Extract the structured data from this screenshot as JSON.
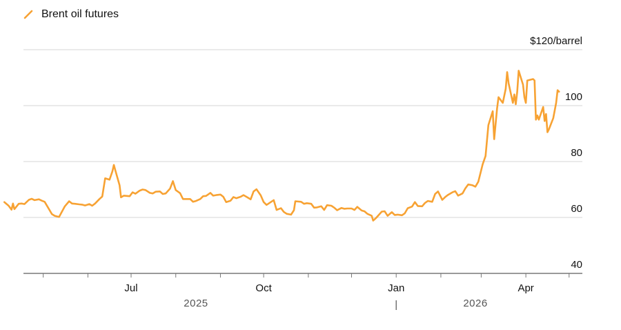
{
  "legend": {
    "label": "Brent oil futures",
    "color": "#f7a233"
  },
  "chart_data": {
    "type": "line",
    "title": "",
    "xlabel": "",
    "ylabel": "",
    "y_top_label": "$120/barrel",
    "ylim": [
      40,
      120
    ],
    "y_ticks": [
      {
        "value": 40,
        "label": "40"
      },
      {
        "value": 60,
        "label": "60"
      },
      {
        "value": 80,
        "label": "80"
      },
      {
        "value": 100,
        "label": "100"
      }
    ],
    "xlim": [
      "2025-04-01",
      "2026-05-15"
    ],
    "month_ticks": [
      "2025-05-01",
      "2025-06-01",
      "2025-07-01",
      "2025-08-01",
      "2025-09-01",
      "2025-10-01",
      "2025-11-01",
      "2025-12-01",
      "2026-01-01",
      "2026-02-01",
      "2026-03-01",
      "2026-04-01",
      "2026-05-01"
    ],
    "x_labels": [
      {
        "date": "2025-07-01",
        "label": "Jul"
      },
      {
        "date": "2025-10-01",
        "label": "Oct"
      },
      {
        "date": "2026-01-01",
        "label": "Jan"
      },
      {
        "date": "2026-04-01",
        "label": "Apr"
      }
    ],
    "year_labels": [
      {
        "date": "2025-08-15",
        "label": "2025"
      },
      {
        "date": "2026-02-25",
        "label": "2026"
      }
    ],
    "year_divider": "|",
    "grid": true,
    "series": [
      {
        "name": "Brent oil futures",
        "color": "#f7a233",
        "points": [
          [
            "2025-04-04",
            65.5
          ],
          [
            "2025-04-07",
            64.2
          ],
          [
            "2025-04-09",
            62.8
          ],
          [
            "2025-04-10",
            65.0
          ],
          [
            "2025-04-11",
            63.0
          ],
          [
            "2025-04-14",
            64.9
          ],
          [
            "2025-04-16",
            65.0
          ],
          [
            "2025-04-18",
            64.8
          ],
          [
            "2025-04-21",
            66.3
          ],
          [
            "2025-04-23",
            66.7
          ],
          [
            "2025-04-25",
            66.2
          ],
          [
            "2025-04-28",
            66.5
          ],
          [
            "2025-04-30",
            66.0
          ],
          [
            "2025-05-02",
            65.6
          ],
          [
            "2025-05-05",
            63.0
          ],
          [
            "2025-05-07",
            61.2
          ],
          [
            "2025-05-09",
            60.6
          ],
          [
            "2025-05-12",
            60.2
          ],
          [
            "2025-05-14",
            62.1
          ],
          [
            "2025-05-16",
            64.0
          ],
          [
            "2025-05-19",
            65.8
          ],
          [
            "2025-05-21",
            65.0
          ],
          [
            "2025-05-23",
            64.9
          ],
          [
            "2025-05-26",
            64.7
          ],
          [
            "2025-05-28",
            64.6
          ],
          [
            "2025-05-30",
            64.3
          ],
          [
            "2025-06-02",
            64.8
          ],
          [
            "2025-06-04",
            64.2
          ],
          [
            "2025-06-06",
            65.0
          ],
          [
            "2025-06-09",
            66.6
          ],
          [
            "2025-06-11",
            67.5
          ],
          [
            "2025-06-13",
            74.0
          ],
          [
            "2025-06-16",
            73.5
          ],
          [
            "2025-06-18",
            76.5
          ],
          [
            "2025-06-19",
            78.8
          ],
          [
            "2025-06-20",
            77.0
          ],
          [
            "2025-06-23",
            71.5
          ],
          [
            "2025-06-24",
            67.2
          ],
          [
            "2025-06-26",
            67.8
          ],
          [
            "2025-06-30",
            67.6
          ],
          [
            "2025-07-02",
            69.0
          ],
          [
            "2025-07-04",
            68.5
          ],
          [
            "2025-07-07",
            69.6
          ],
          [
            "2025-07-09",
            70.0
          ],
          [
            "2025-07-11",
            69.8
          ],
          [
            "2025-07-14",
            68.8
          ],
          [
            "2025-07-16",
            68.6
          ],
          [
            "2025-07-18",
            69.2
          ],
          [
            "2025-07-21",
            69.3
          ],
          [
            "2025-07-23",
            68.4
          ],
          [
            "2025-07-25",
            68.6
          ],
          [
            "2025-07-28",
            70.3
          ],
          [
            "2025-07-30",
            73.0
          ],
          [
            "2025-08-01",
            69.8
          ],
          [
            "2025-08-04",
            68.7
          ],
          [
            "2025-08-06",
            66.6
          ],
          [
            "2025-08-08",
            66.6
          ],
          [
            "2025-08-11",
            66.6
          ],
          [
            "2025-08-13",
            65.6
          ],
          [
            "2025-08-15",
            65.9
          ],
          [
            "2025-08-18",
            66.6
          ],
          [
            "2025-08-20",
            67.6
          ],
          [
            "2025-08-22",
            67.7
          ],
          [
            "2025-08-25",
            68.8
          ],
          [
            "2025-08-27",
            67.8
          ],
          [
            "2025-08-29",
            68.0
          ],
          [
            "2025-09-01",
            68.2
          ],
          [
            "2025-09-03",
            67.4
          ],
          [
            "2025-09-05",
            65.5
          ],
          [
            "2025-09-08",
            66.0
          ],
          [
            "2025-09-10",
            67.3
          ],
          [
            "2025-09-12",
            66.9
          ],
          [
            "2025-09-15",
            67.4
          ],
          [
            "2025-09-17",
            68.0
          ],
          [
            "2025-09-19",
            67.4
          ],
          [
            "2025-09-22",
            66.5
          ],
          [
            "2025-09-24",
            69.3
          ],
          [
            "2025-09-26",
            70.1
          ],
          [
            "2025-09-29",
            67.9
          ],
          [
            "2025-10-01",
            65.5
          ],
          [
            "2025-10-03",
            64.5
          ],
          [
            "2025-10-06",
            65.5
          ],
          [
            "2025-10-08",
            66.2
          ],
          [
            "2025-10-10",
            62.7
          ],
          [
            "2025-10-13",
            63.3
          ],
          [
            "2025-10-15",
            62.0
          ],
          [
            "2025-10-17",
            61.3
          ],
          [
            "2025-10-20",
            61.0
          ],
          [
            "2025-10-22",
            62.6
          ],
          [
            "2025-10-23",
            65.8
          ],
          [
            "2025-10-27",
            65.6
          ],
          [
            "2025-10-29",
            64.9
          ],
          [
            "2025-10-31",
            65.1
          ],
          [
            "2025-11-03",
            64.9
          ],
          [
            "2025-11-05",
            63.5
          ],
          [
            "2025-11-07",
            63.6
          ],
          [
            "2025-11-10",
            64.0
          ],
          [
            "2025-11-12",
            62.7
          ],
          [
            "2025-11-14",
            64.4
          ],
          [
            "2025-11-17",
            64.2
          ],
          [
            "2025-11-19",
            63.5
          ],
          [
            "2025-11-21",
            62.6
          ],
          [
            "2025-11-24",
            63.4
          ],
          [
            "2025-11-26",
            63.1
          ],
          [
            "2025-11-28",
            63.2
          ],
          [
            "2025-12-01",
            63.2
          ],
          [
            "2025-12-03",
            62.7
          ],
          [
            "2025-12-05",
            63.8
          ],
          [
            "2025-12-08",
            62.5
          ],
          [
            "2025-12-10",
            62.2
          ],
          [
            "2025-12-12",
            61.3
          ],
          [
            "2025-12-15",
            60.6
          ],
          [
            "2025-12-16",
            58.9
          ],
          [
            "2025-12-18",
            59.8
          ],
          [
            "2025-12-22",
            62.1
          ],
          [
            "2025-12-24",
            62.2
          ],
          [
            "2025-12-26",
            60.6
          ],
          [
            "2025-12-29",
            61.9
          ],
          [
            "2025-12-31",
            60.9
          ],
          [
            "2026-01-02",
            61.0
          ],
          [
            "2026-01-05",
            60.8
          ],
          [
            "2026-01-07",
            61.5
          ],
          [
            "2026-01-09",
            63.3
          ],
          [
            "2026-01-12",
            63.9
          ],
          [
            "2026-01-14",
            65.5
          ],
          [
            "2026-01-16",
            64.1
          ],
          [
            "2026-01-19",
            64.0
          ],
          [
            "2026-01-21",
            65.2
          ],
          [
            "2026-01-23",
            65.9
          ],
          [
            "2026-01-26",
            65.6
          ],
          [
            "2026-01-28",
            68.4
          ],
          [
            "2026-01-30",
            69.3
          ],
          [
            "2026-02-02",
            66.3
          ],
          [
            "2026-02-04",
            67.3
          ],
          [
            "2026-02-06",
            68.1
          ],
          [
            "2026-02-09",
            69.0
          ],
          [
            "2026-02-11",
            69.4
          ],
          [
            "2026-02-13",
            67.8
          ],
          [
            "2026-02-16",
            68.6
          ],
          [
            "2026-02-18",
            70.4
          ],
          [
            "2026-02-20",
            71.8
          ],
          [
            "2026-02-23",
            71.5
          ],
          [
            "2026-02-25",
            71.0
          ],
          [
            "2026-02-27",
            72.8
          ],
          [
            "2026-03-02",
            79.0
          ],
          [
            "2026-03-04",
            82.0
          ],
          [
            "2026-03-06",
            93.0
          ],
          [
            "2026-03-09",
            98.0
          ],
          [
            "2026-03-10",
            88.0
          ],
          [
            "2026-03-12",
            99.0
          ],
          [
            "2026-03-13",
            103.0
          ],
          [
            "2026-03-16",
            101.0
          ],
          [
            "2026-03-18",
            106.0
          ],
          [
            "2026-03-19",
            112.0
          ],
          [
            "2026-03-20",
            108.0
          ],
          [
            "2026-03-23",
            101.0
          ],
          [
            "2026-03-24",
            104.0
          ],
          [
            "2026-03-25",
            100.5
          ],
          [
            "2026-03-26",
            105.0
          ],
          [
            "2026-03-27",
            112.5
          ],
          [
            "2026-03-30",
            107.5
          ],
          [
            "2026-03-31",
            103.0
          ],
          [
            "2026-04-01",
            101.0
          ],
          [
            "2026-04-02",
            109.0
          ],
          [
            "2026-04-06",
            109.5
          ],
          [
            "2026-04-07",
            109.0
          ],
          [
            "2026-04-08",
            95.0
          ],
          [
            "2026-04-09",
            96.5
          ],
          [
            "2026-04-10",
            95.0
          ],
          [
            "2026-04-13",
            99.5
          ],
          [
            "2026-04-14",
            94.5
          ],
          [
            "2026-04-15",
            97.0
          ],
          [
            "2026-04-16",
            90.5
          ],
          [
            "2026-04-17",
            91.5
          ],
          [
            "2026-04-20",
            95.5
          ],
          [
            "2026-04-22",
            101.0
          ],
          [
            "2026-04-23",
            105.5
          ],
          [
            "2026-04-24",
            105.0
          ]
        ]
      }
    ]
  }
}
